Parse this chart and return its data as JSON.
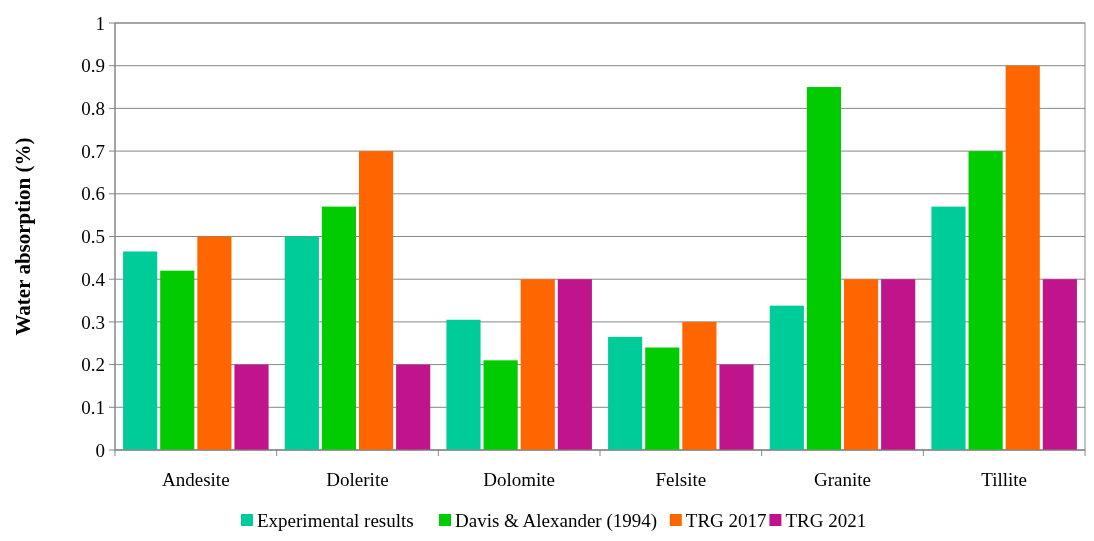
{
  "chart_data": {
    "type": "bar",
    "ylabel": "Water absorption (%)",
    "categories": [
      "Andesite",
      "Dolerite",
      "Dolomite",
      "Felsite",
      "Granite",
      "Tillite"
    ],
    "series": [
      {
        "name": "Experimental results",
        "color": "#00cc99",
        "values": [
          0.465,
          0.5,
          0.305,
          0.265,
          0.338,
          0.57
        ]
      },
      {
        "name": "Davis & Alexander (1994)",
        "color": "#00cc00",
        "values": [
          0.42,
          0.57,
          0.21,
          0.24,
          0.85,
          0.7
        ]
      },
      {
        "name": "TRG 2017",
        "color": "#ff6600",
        "values": [
          0.5,
          0.7,
          0.4,
          0.3,
          0.4,
          0.9
        ]
      },
      {
        "name": "TRG 2021",
        "color": "#c0148c",
        "values": [
          0.2,
          0.2,
          0.4,
          0.2,
          0.4,
          0.4
        ]
      }
    ],
    "ylim": [
      0,
      1
    ],
    "yticks": [
      0,
      0.1,
      0.2,
      0.3,
      0.4,
      0.5,
      0.6,
      0.7,
      0.8,
      0.9,
      1
    ],
    "grid": "y",
    "legend": "bottom"
  }
}
